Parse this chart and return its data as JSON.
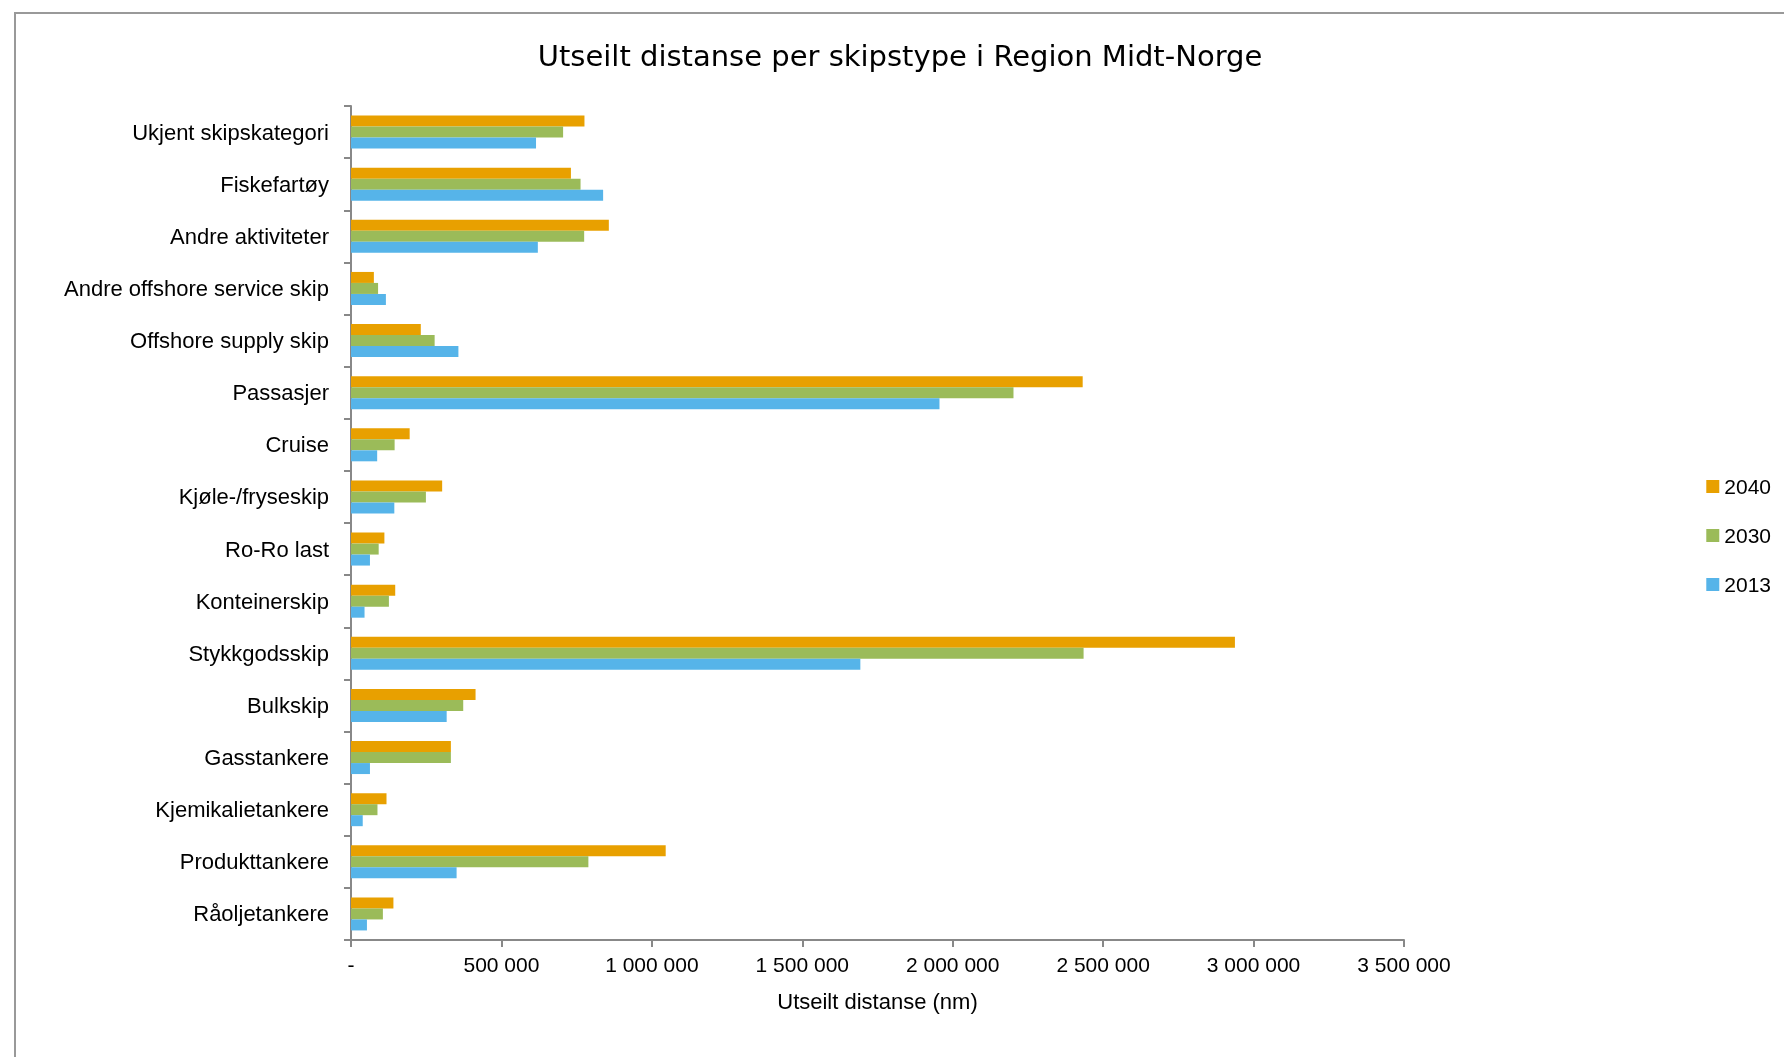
{
  "chart_data": {
    "type": "bar",
    "orientation": "horizontal",
    "title": "Utseilt distanse per skipstype i Region Midt-Norge",
    "xlabel": "Utseilt distanse (nm)",
    "categories": [
      "Ukjent skipskategori",
      "Fiskefartøy",
      "Andre aktiviteter",
      "Andre offshore service skip",
      "Offshore supply skip",
      "Passasjer",
      "Cruise",
      "Kjøle-/fryseskip",
      "Ro-Ro last",
      "Konteinerskip",
      "Stykkgodsskip",
      "Bulkskip",
      "Gasstankere",
      "Kjemikalietankere",
      "Produkttankere",
      "Råoljetankere"
    ],
    "series": [
      {
        "name": "2040",
        "color": "#e8a000",
        "values": [
          776000,
          731000,
          857000,
          76000,
          232000,
          2432000,
          195000,
          303000,
          111000,
          147000,
          2938000,
          414000,
          332000,
          118000,
          1046000,
          141000
        ]
      },
      {
        "name": "2030",
        "color": "#9bbb59",
        "values": [
          705000,
          763000,
          775000,
          90000,
          278000,
          2202000,
          145000,
          249000,
          92000,
          126000,
          2435000,
          373000,
          332000,
          88000,
          789000,
          106000
        ]
      },
      {
        "name": "2013",
        "color": "#56b4e9",
        "values": [
          615000,
          838000,
          621000,
          116000,
          357000,
          1956000,
          87000,
          144000,
          63000,
          45000,
          1693000,
          318000,
          63000,
          39000,
          351000,
          53000
        ]
      }
    ],
    "xlim": [
      0,
      3500000
    ],
    "xticks": [
      {
        "value": 0,
        "label": "-"
      },
      {
        "value": 500000,
        "label": "500 000"
      },
      {
        "value": 1000000,
        "label": "1 000 000"
      },
      {
        "value": 1500000,
        "label": "1 500 000"
      },
      {
        "value": 2000000,
        "label": "2 000 000"
      },
      {
        "value": 2500000,
        "label": "2 500 000"
      },
      {
        "value": 3000000,
        "label": "3 000 000"
      },
      {
        "value": 3500000,
        "label": "3 500 000"
      }
    ],
    "grid": false,
    "legend": "right"
  }
}
